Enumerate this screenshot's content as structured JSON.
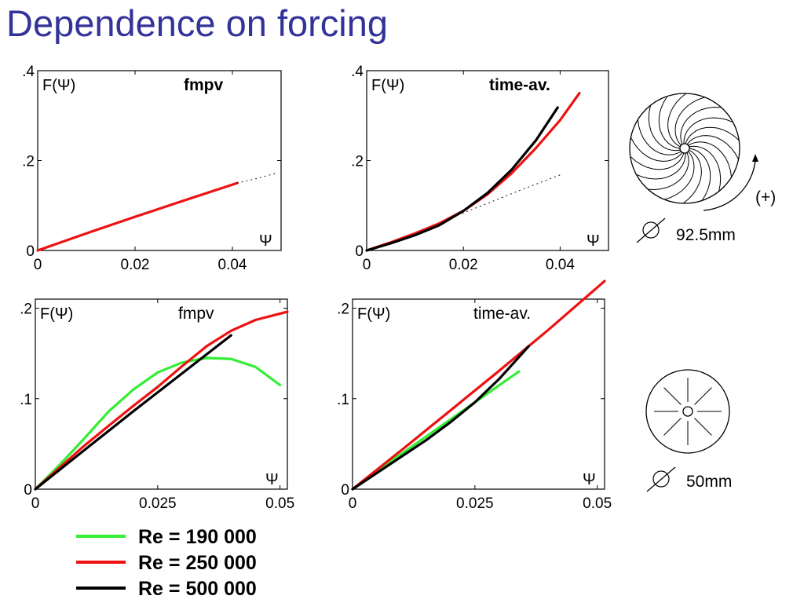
{
  "title": "Dependence on forcing",
  "colors": {
    "title": "#333399",
    "re_190000": "#33ee33",
    "re_250000": "#ee1111",
    "re_500000": "#000000"
  },
  "chart_data": [
    {
      "type": "line",
      "panel": "top-left",
      "title": "fmpv",
      "ylabel": "F(Ψ)",
      "xlabel": "Ψ",
      "xlim": [
        0,
        0.05
      ],
      "ylim": [
        0,
        0.4
      ],
      "xticks": [
        "0",
        "0.02",
        "0.04"
      ],
      "xtick_values": [
        0,
        0.02,
        0.04
      ],
      "yticks": [
        "0",
        ".2",
        ".4"
      ],
      "ytick_values": [
        0,
        0.2,
        0.4
      ],
      "series": [
        {
          "color": "#ee1111",
          "style": "solid",
          "x": [
            0,
            0.01,
            0.02,
            0.03,
            0.041
          ],
          "y": [
            0,
            0.038,
            0.075,
            0.111,
            0.15
          ]
        },
        {
          "color": "#000000",
          "style": "dotted",
          "x": [
            0.041,
            0.045,
            0.049
          ],
          "y": [
            0.15,
            0.16,
            0.172
          ]
        }
      ]
    },
    {
      "type": "line",
      "panel": "top-right",
      "title": "time-av.",
      "ylabel": "F(Ψ)",
      "xlabel": "Ψ",
      "xlim": [
        0,
        0.05
      ],
      "ylim": [
        0,
        0.4
      ],
      "xticks": [
        "0",
        "0.02",
        "0.04"
      ],
      "xtick_values": [
        0,
        0.02,
        0.04
      ],
      "yticks": [
        "0",
        ".2",
        ".4"
      ],
      "ytick_values": [
        0,
        0.2,
        0.4
      ],
      "series": [
        {
          "color": "#ee1111",
          "style": "solid",
          "x": [
            0,
            0.005,
            0.01,
            0.015,
            0.02,
            0.025,
            0.03,
            0.035,
            0.04,
            0.044
          ],
          "y": [
            0,
            0.018,
            0.038,
            0.06,
            0.088,
            0.125,
            0.172,
            0.228,
            0.29,
            0.35
          ]
        },
        {
          "color": "#000000",
          "style": "solid",
          "x": [
            0,
            0.005,
            0.01,
            0.015,
            0.02,
            0.025,
            0.03,
            0.035,
            0.0395
          ],
          "y": [
            0,
            0.016,
            0.034,
            0.056,
            0.088,
            0.128,
            0.18,
            0.245,
            0.318
          ]
        },
        {
          "color": "#000000",
          "style": "dotted",
          "x": [
            0.018,
            0.025,
            0.032,
            0.04
          ],
          "y": [
            0.075,
            0.105,
            0.135,
            0.168
          ]
        }
      ]
    },
    {
      "type": "line",
      "panel": "bottom-left",
      "title": "fmpv",
      "ylabel": "F(Ψ)",
      "xlabel": "Ψ",
      "xlim": [
        0,
        0.0515
      ],
      "ylim": [
        0,
        0.21
      ],
      "xticks": [
        "0",
        "0.025",
        "0.05"
      ],
      "xtick_values": [
        0,
        0.025,
        0.05
      ],
      "yticks": [
        "0",
        ".1",
        ".2"
      ],
      "ytick_values": [
        0,
        0.1,
        0.2
      ],
      "series": [
        {
          "name": "Re = 190 000",
          "color": "#33ee33",
          "x": [
            0,
            0.005,
            0.01,
            0.015,
            0.02,
            0.025,
            0.03,
            0.035,
            0.04,
            0.045,
            0.05
          ],
          "y": [
            0,
            0.027,
            0.056,
            0.086,
            0.11,
            0.129,
            0.14,
            0.145,
            0.144,
            0.135,
            0.115
          ]
        },
        {
          "name": "Re = 250 000",
          "color": "#ee1111",
          "x": [
            0,
            0.005,
            0.01,
            0.015,
            0.02,
            0.025,
            0.03,
            0.035,
            0.04,
            0.045,
            0.05,
            0.0515
          ],
          "y": [
            0,
            0.024,
            0.048,
            0.07,
            0.092,
            0.113,
            0.136,
            0.158,
            0.175,
            0.187,
            0.194,
            0.196
          ]
        },
        {
          "name": "Re = 500 000",
          "color": "#000000",
          "x": [
            0,
            0.01,
            0.02,
            0.03,
            0.04
          ],
          "y": [
            0,
            0.043,
            0.086,
            0.128,
            0.17
          ]
        }
      ]
    },
    {
      "type": "line",
      "panel": "bottom-right",
      "title": "time-av.",
      "ylabel": "F(Ψ)",
      "xlabel": "Ψ",
      "xlim": [
        0,
        0.0515
      ],
      "ylim": [
        0,
        0.21
      ],
      "xticks": [
        "0",
        "0.025",
        "0.05"
      ],
      "xtick_values": [
        0,
        0.025,
        0.05
      ],
      "yticks": [
        "0",
        ".1",
        ".2"
      ],
      "ytick_values": [
        0,
        0.1,
        0.2
      ],
      "series": [
        {
          "name": "Re = 190 000",
          "color": "#33ee33",
          "x": [
            0,
            0.005,
            0.01,
            0.015,
            0.02,
            0.025,
            0.03,
            0.034
          ],
          "y": [
            0,
            0.02,
            0.039,
            0.058,
            0.077,
            0.096,
            0.115,
            0.13
          ]
        },
        {
          "name": "Re = 250 000",
          "color": "#ee1111",
          "x": [
            0,
            0.01,
            0.02,
            0.03,
            0.04,
            0.0515
          ],
          "y": [
            0,
            0.043,
            0.087,
            0.131,
            0.176,
            0.23
          ]
        },
        {
          "name": "Re = 500 000",
          "color": "#000000",
          "x": [
            0,
            0.005,
            0.01,
            0.015,
            0.02,
            0.025,
            0.03,
            0.036
          ],
          "y": [
            0,
            0.018,
            0.036,
            0.054,
            0.074,
            0.096,
            0.122,
            0.158
          ]
        }
      ]
    }
  ],
  "legend": [
    {
      "label": "Re = 190 000",
      "color": "#33ee33"
    },
    {
      "label": "Re = 250 000",
      "color": "#ee1111"
    },
    {
      "label": "Re = 500 000",
      "color": "#000000"
    }
  ],
  "impellers": [
    {
      "kind": "curved-blades",
      "direction_label": "(+)",
      "diameter_label": "92.5mm"
    },
    {
      "kind": "straight-blades",
      "diameter_label": "50mm"
    }
  ]
}
